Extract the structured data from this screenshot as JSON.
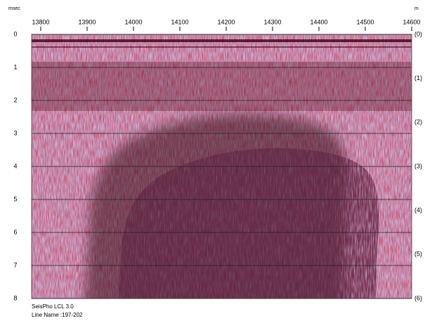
{
  "chart_data": {
    "type": "seismic",
    "x_unit": "m",
    "y_unit": "msec",
    "xlim": [
      13800,
      14600
    ],
    "xticks": [
      13800,
      13900,
      14000,
      14100,
      14200,
      14300,
      14400,
      14500,
      14600
    ],
    "ylim": [
      0,
      8
    ],
    "yticks": [
      0,
      1,
      2,
      3,
      4,
      5,
      6,
      7,
      8
    ],
    "right_labels": [
      "(0)",
      "(1)",
      "(2)",
      "(3)",
      "(4)",
      "(5)",
      "(6)"
    ],
    "grid": true,
    "footer": [
      "SeisPho LCL 3.0",
      "Line Name :197-202"
    ]
  }
}
